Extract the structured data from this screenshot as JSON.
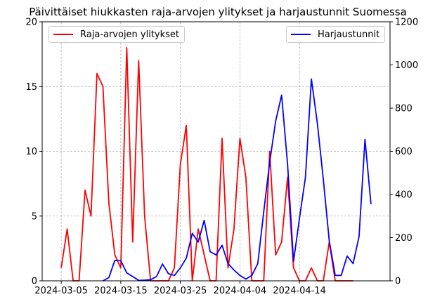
{
  "chart_data": {
    "type": "line",
    "title": "Päivittäiset hiukkasten raja-arvojen ylitykset ja harjaustunnit Suomessa",
    "xlabel": "",
    "x_start": "2024-03-05",
    "xlim": [
      "2024-03-05",
      "2024-04-26"
    ],
    "x_ticks": [
      "2024-03-05",
      "2024-03-15",
      "2024-03-25",
      "2024-04-04",
      "2024-04-14"
    ],
    "grid": true,
    "left_axis": {
      "ylabel": "",
      "ylim": [
        0,
        20
      ],
      "ticks": [
        0,
        5,
        10,
        15,
        20
      ]
    },
    "right_axis": {
      "ylabel": "",
      "ylim": [
        0,
        1200
      ],
      "ticks": [
        0,
        200,
        400,
        600,
        800,
        1000,
        1200
      ]
    },
    "series": [
      {
        "name": "Raja-arvojen ylitykset",
        "axis": "left",
        "color": "#ff0000",
        "legend_position": "upper-left",
        "points": [
          [
            "2024-03-05",
            1
          ],
          [
            "2024-03-06",
            4
          ],
          [
            "2024-03-07",
            0
          ],
          [
            "2024-03-08",
            0
          ],
          [
            "2024-03-09",
            7
          ],
          [
            "2024-03-10",
            5
          ],
          [
            "2024-03-11",
            16
          ],
          [
            "2024-03-12",
            15
          ],
          [
            "2024-03-13",
            6
          ],
          [
            "2024-03-14",
            2
          ],
          [
            "2024-03-15",
            1
          ],
          [
            "2024-03-16",
            18
          ],
          [
            "2024-03-17",
            3
          ],
          [
            "2024-03-18",
            17
          ],
          [
            "2024-03-19",
            5
          ],
          [
            "2024-03-20",
            0
          ],
          [
            "2024-03-21",
            0
          ],
          [
            "2024-03-22",
            0
          ],
          [
            "2024-03-23",
            0
          ],
          [
            "2024-03-24",
            1
          ],
          [
            "2024-03-25",
            9
          ],
          [
            "2024-03-26",
            12
          ],
          [
            "2024-03-27",
            0
          ],
          [
            "2024-03-28",
            4
          ],
          [
            "2024-03-29",
            2
          ],
          [
            "2024-03-30",
            0
          ],
          [
            "2024-03-31",
            0
          ],
          [
            "2024-04-01",
            11
          ],
          [
            "2024-04-02",
            1
          ],
          [
            "2024-04-03",
            4
          ],
          [
            "2024-04-04",
            11
          ],
          [
            "2024-04-05",
            8
          ],
          [
            "2024-04-06",
            0
          ],
          [
            "2024-04-07",
            0
          ],
          [
            "2024-04-08",
            0
          ],
          [
            "2024-04-09",
            10
          ],
          [
            "2024-04-10",
            2
          ],
          [
            "2024-04-11",
            3
          ],
          [
            "2024-04-12",
            8
          ],
          [
            "2024-04-13",
            1
          ],
          [
            "2024-04-14",
            0
          ],
          [
            "2024-04-15",
            0
          ],
          [
            "2024-04-16",
            1
          ],
          [
            "2024-04-17",
            0
          ],
          [
            "2024-04-18",
            0
          ],
          [
            "2024-04-19",
            3
          ],
          [
            "2024-04-20",
            0
          ],
          [
            "2024-04-21",
            0
          ],
          [
            "2024-04-22",
            0
          ],
          [
            "2024-04-23",
            0
          ]
        ]
      },
      {
        "name": "Harjaustunnit",
        "axis": "right",
        "color": "#0000ff",
        "legend_position": "upper-right",
        "points": [
          [
            "2024-03-12",
            0
          ],
          [
            "2024-03-13",
            15
          ],
          [
            "2024-03-14",
            95
          ],
          [
            "2024-03-15",
            93
          ],
          [
            "2024-03-16",
            37
          ],
          [
            "2024-03-17",
            20
          ],
          [
            "2024-03-18",
            2
          ],
          [
            "2024-03-19",
            3
          ],
          [
            "2024-03-20",
            5
          ],
          [
            "2024-03-21",
            20
          ],
          [
            "2024-03-22",
            78
          ],
          [
            "2024-03-23",
            33
          ],
          [
            "2024-03-24",
            25
          ],
          [
            "2024-03-25",
            60
          ],
          [
            "2024-03-26",
            105
          ],
          [
            "2024-03-27",
            220
          ],
          [
            "2024-03-28",
            180
          ],
          [
            "2024-03-29",
            280
          ],
          [
            "2024-03-30",
            135
          ],
          [
            "2024-03-31",
            120
          ],
          [
            "2024-04-01",
            165
          ],
          [
            "2024-04-02",
            80
          ],
          [
            "2024-04-03",
            50
          ],
          [
            "2024-04-04",
            25
          ],
          [
            "2024-04-05",
            8
          ],
          [
            "2024-04-06",
            25
          ],
          [
            "2024-04-07",
            80
          ],
          [
            "2024-04-08",
            320
          ],
          [
            "2024-04-09",
            550
          ],
          [
            "2024-04-10",
            740
          ],
          [
            "2024-04-11",
            860
          ],
          [
            "2024-04-12",
            540
          ],
          [
            "2024-04-13",
            90
          ],
          [
            "2024-04-14",
            290
          ],
          [
            "2024-04-15",
            480
          ],
          [
            "2024-04-16",
            935
          ],
          [
            "2024-04-17",
            730
          ],
          [
            "2024-04-18",
            470
          ],
          [
            "2024-04-19",
            185
          ],
          [
            "2024-04-20",
            25
          ],
          [
            "2024-04-21",
            25
          ],
          [
            "2024-04-22",
            115
          ],
          [
            "2024-04-23",
            80
          ],
          [
            "2024-04-24",
            205
          ],
          [
            "2024-04-25",
            655
          ],
          [
            "2024-04-26",
            355
          ]
        ]
      }
    ]
  }
}
